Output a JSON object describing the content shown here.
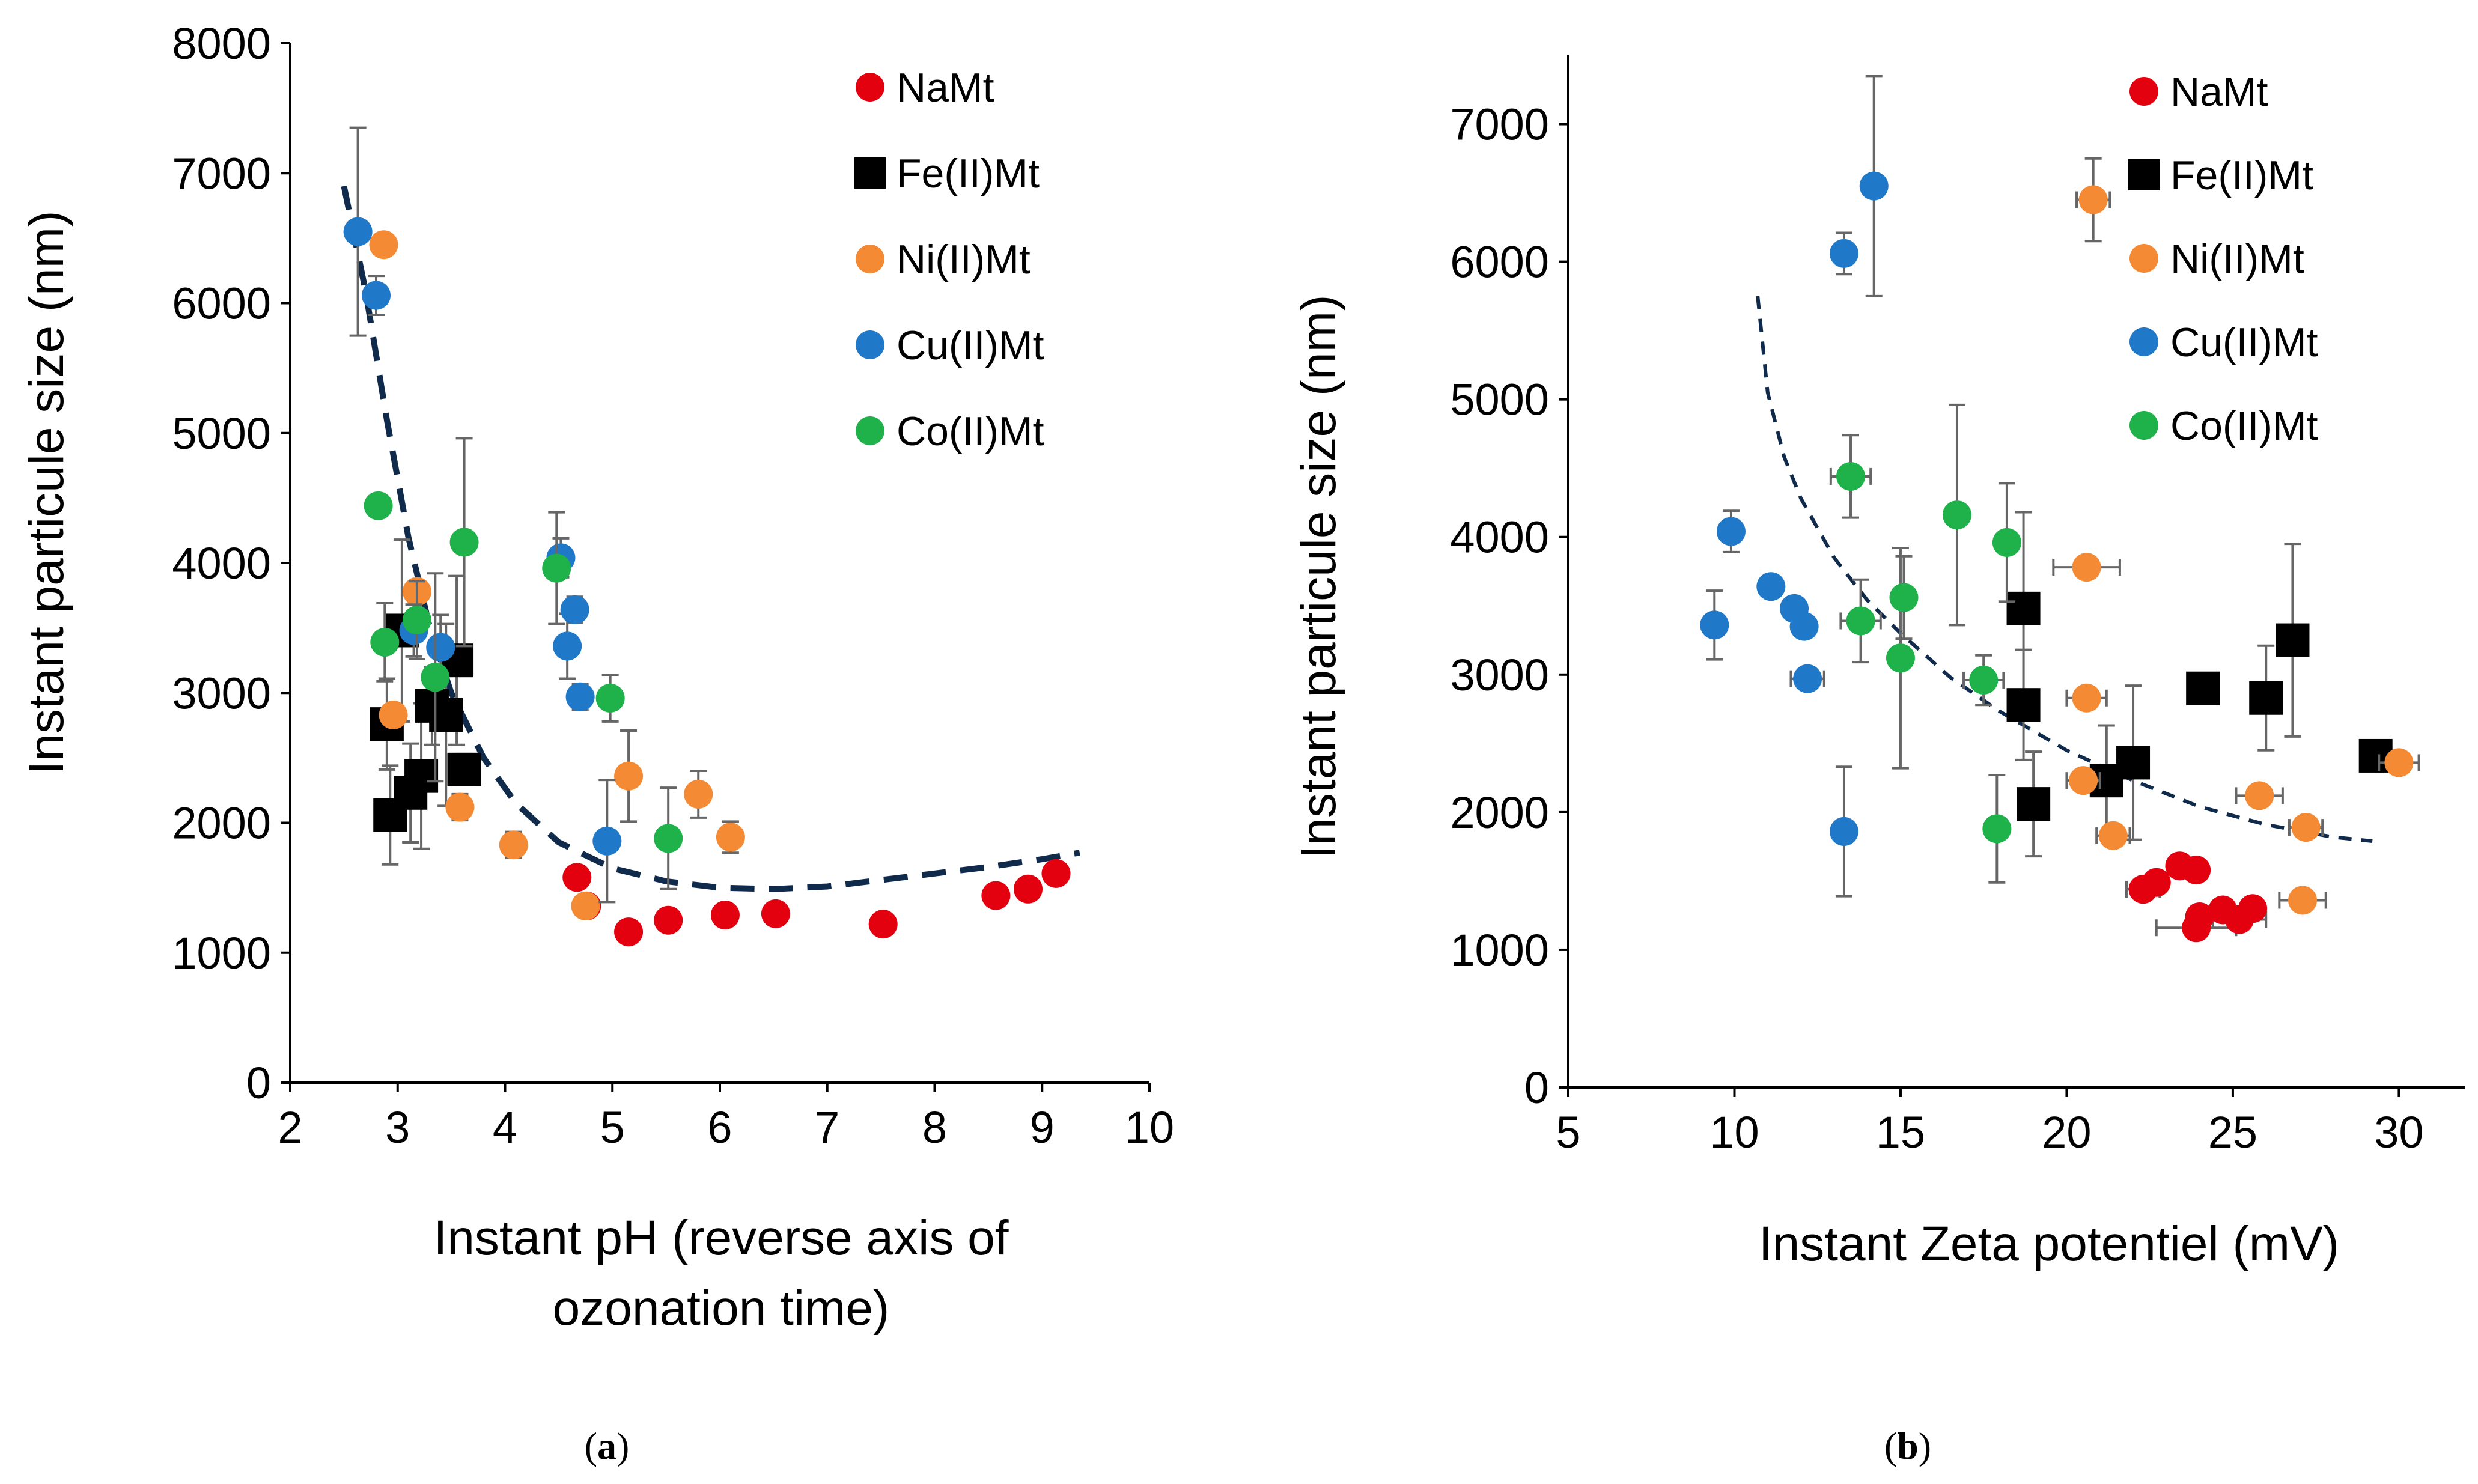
{
  "figure": {
    "colors": {
      "NaMt": "#e3000f",
      "Fe(II)Mt": "#000000",
      "Ni(II)Mt": "#f58a34",
      "Cu(II)Mt": "#1f78c8",
      "Co(II)Mt": "#1fb24a",
      "trend": "#0f2a4a",
      "error_bar": "#666666"
    }
  },
  "chart_data": [
    {
      "id": "a",
      "type": "scatter",
      "caption_letter": "a",
      "xlabel_line1": "Instant pH (reverse axis of",
      "xlabel_line2": "ozonation time)",
      "ylabel": "Instant particule size (nm)",
      "xlim": [
        2,
        10
      ],
      "ylim": [
        0,
        8000
      ],
      "xticks": [
        "2",
        "3",
        "4",
        "5",
        "6",
        "7",
        "8",
        "9",
        "10"
      ],
      "yticks": [
        "0",
        "1000",
        "2000",
        "3000",
        "4000",
        "5000",
        "6000",
        "7000",
        "8000"
      ],
      "legend": [
        "NaMt",
        "Fe(II)Mt",
        "Ni(II)Mt",
        "Cu(II)Mt",
        "Co(II)Mt"
      ],
      "legend_position": "top-right",
      "trendline": {
        "style": "dashed",
        "x": [
          2.5,
          2.7,
          2.9,
          3.1,
          3.3,
          3.5,
          3.8,
          4.1,
          4.5,
          5.0,
          5.5,
          6.0,
          6.5,
          7.0,
          7.5,
          8.0,
          8.5,
          9.0,
          9.35
        ],
        "y": [
          6900,
          6100,
          5100,
          4200,
          3500,
          3000,
          2500,
          2150,
          1850,
          1650,
          1550,
          1500,
          1490,
          1510,
          1560,
          1610,
          1660,
          1720,
          1770
        ]
      },
      "series": [
        {
          "name": "NaMt",
          "marker": "circle",
          "points": [
            {
              "x": 4.67,
              "y": 1580,
              "e": 40
            },
            {
              "x": 4.76,
              "y": 1360,
              "e": 0
            },
            {
              "x": 5.15,
              "y": 1160,
              "e": 40
            },
            {
              "x": 5.52,
              "y": 1250,
              "e": 40
            },
            {
              "x": 6.05,
              "y": 1290,
              "e": 40
            },
            {
              "x": 6.52,
              "y": 1300,
              "e": 40
            },
            {
              "x": 7.52,
              "y": 1220,
              "e": 80
            },
            {
              "x": 8.57,
              "y": 1440,
              "e": 40
            },
            {
              "x": 8.87,
              "y": 1490,
              "e": 80
            },
            {
              "x": 9.13,
              "y": 1610,
              "e": 40
            }
          ]
        },
        {
          "name": "Fe(II)Mt",
          "marker": "square",
          "points": [
            {
              "x": 2.9,
              "y": 2760,
              "e": 350
            },
            {
              "x": 2.93,
              "y": 2060,
              "e": 380
            },
            {
              "x": 3.04,
              "y": 3480,
              "e": 700
            },
            {
              "x": 3.12,
              "y": 2230,
              "e": 380
            },
            {
              "x": 3.22,
              "y": 2360,
              "e": 560
            },
            {
              "x": 3.32,
              "y": 2900,
              "e": 300
            },
            {
              "x": 3.45,
              "y": 2830,
              "e": 700
            },
            {
              "x": 3.55,
              "y": 3250,
              "e": 650
            },
            {
              "x": 3.62,
              "y": 2410,
              "e": 120
            }
          ]
        },
        {
          "name": "Ni(II)Mt",
          "marker": "circle",
          "points": [
            {
              "x": 2.87,
              "y": 6450,
              "e": 0
            },
            {
              "x": 2.96,
              "y": 2830,
              "e": 0
            },
            {
              "x": 3.18,
              "y": 3780,
              "e": 0
            },
            {
              "x": 3.58,
              "y": 2120,
              "e": 100
            },
            {
              "x": 4.08,
              "y": 1830,
              "e": 100
            },
            {
              "x": 4.75,
              "y": 1360,
              "e": 0
            },
            {
              "x": 5.15,
              "y": 2360,
              "e": 350
            },
            {
              "x": 5.8,
              "y": 2220,
              "e": 180
            },
            {
              "x": 6.1,
              "y": 1890,
              "e": 120
            }
          ]
        },
        {
          "name": "Cu(II)Mt",
          "marker": "circle",
          "points": [
            {
              "x": 2.63,
              "y": 6550,
              "e": 800
            },
            {
              "x": 2.8,
              "y": 6060,
              "e": 150
            },
            {
              "x": 3.15,
              "y": 3480,
              "e": 200
            },
            {
              "x": 3.4,
              "y": 3350,
              "e": 250
            },
            {
              "x": 4.52,
              "y": 4040,
              "e": 150
            },
            {
              "x": 4.58,
              "y": 3360,
              "e": 250
            },
            {
              "x": 4.65,
              "y": 3640,
              "e": 100
            },
            {
              "x": 4.7,
              "y": 2970,
              "e": 100
            },
            {
              "x": 4.95,
              "y": 1860,
              "e": 470
            }
          ]
        },
        {
          "name": "Co(II)Mt",
          "marker": "circle",
          "points": [
            {
              "x": 2.82,
              "y": 4440,
              "e": 0
            },
            {
              "x": 2.88,
              "y": 3390,
              "e": 300
            },
            {
              "x": 3.18,
              "y": 3560,
              "e": 300
            },
            {
              "x": 3.35,
              "y": 3120,
              "e": 800
            },
            {
              "x": 3.62,
              "y": 4160,
              "e": 800
            },
            {
              "x": 4.48,
              "y": 3960,
              "e": 430
            },
            {
              "x": 4.98,
              "y": 2960,
              "e": 180
            },
            {
              "x": 5.52,
              "y": 1880,
              "e": 390
            }
          ]
        }
      ]
    },
    {
      "id": "b",
      "type": "scatter",
      "caption_letter": "b",
      "xlabel_line1": "Instant Zeta potentiel (mV)",
      "xlabel_line2": "",
      "ylabel": "Instant particule size (nm)",
      "xlim": [
        5,
        32
      ],
      "ylim": [
        0,
        7500
      ],
      "xticks": [
        "5",
        "10",
        "15",
        "20",
        "25",
        "30"
      ],
      "xtick_values": [
        5,
        10,
        15,
        20,
        25,
        30
      ],
      "yticks": [
        "0",
        "1000",
        "2000",
        "3000",
        "4000",
        "5000",
        "6000",
        "7000"
      ],
      "legend": [
        "NaMt",
        "Fe(II)Mt",
        "Ni(II)Mt",
        "Cu(II)Mt",
        "Co(II)Mt"
      ],
      "legend_position": "top-right",
      "trendline": {
        "style": "dashed",
        "x": [
          10.7,
          11.0,
          11.5,
          12.0,
          13.0,
          14.0,
          15.0,
          16.5,
          18.0,
          20.0,
          22.0,
          24.0,
          26.0,
          28.0,
          29.2
        ],
        "y": [
          5750,
          5050,
          4580,
          4280,
          3850,
          3540,
          3300,
          2980,
          2730,
          2450,
          2230,
          2040,
          1910,
          1820,
          1790
        ]
      },
      "series": [
        {
          "name": "NaMt",
          "marker": "circle",
          "points": [
            {
              "x": 22.3,
              "y": 1440,
              "e": 0,
              "ex": 0.5
            },
            {
              "x": 22.7,
              "y": 1490,
              "e": 0,
              "ex": 0
            },
            {
              "x": 23.4,
              "y": 1610,
              "e": 0,
              "ex": 0
            },
            {
              "x": 23.9,
              "y": 1580,
              "e": 0,
              "ex": 0
            },
            {
              "x": 24.0,
              "y": 1240,
              "e": 0,
              "ex": 0
            },
            {
              "x": 23.9,
              "y": 1160,
              "e": 0,
              "ex": 1.2
            },
            {
              "x": 24.7,
              "y": 1290,
              "e": 0,
              "ex": 0
            },
            {
              "x": 25.2,
              "y": 1220,
              "e": 0,
              "ex": 0.8
            },
            {
              "x": 25.6,
              "y": 1300,
              "e": 0,
              "ex": 0
            }
          ]
        },
        {
          "name": "Fe(II)Mt",
          "marker": "square",
          "points": [
            {
              "x": 18.7,
              "y": 3480,
              "e": 700,
              "ex": 0
            },
            {
              "x": 18.7,
              "y": 2780,
              "e": 400,
              "ex": 0
            },
            {
              "x": 19.0,
              "y": 2060,
              "e": 380,
              "ex": 0
            },
            {
              "x": 21.2,
              "y": 2230,
              "e": 400,
              "ex": 0
            },
            {
              "x": 22.0,
              "y": 2360,
              "e": 560,
              "ex": 0
            },
            {
              "x": 24.1,
              "y": 2900,
              "e": 0,
              "ex": 0
            },
            {
              "x": 26.0,
              "y": 2830,
              "e": 380,
              "ex": 0
            },
            {
              "x": 26.8,
              "y": 3250,
              "e": 700,
              "ex": 0
            },
            {
              "x": 29.3,
              "y": 2410,
              "e": 0,
              "ex": 0
            }
          ]
        },
        {
          "name": "Ni(II)Mt",
          "marker": "circle",
          "points": [
            {
              "x": 20.8,
              "y": 6450,
              "e": 300,
              "ex": 0.5
            },
            {
              "x": 20.6,
              "y": 3780,
              "e": 0,
              "ex": 1.0
            },
            {
              "x": 20.6,
              "y": 2830,
              "e": 0,
              "ex": 0.6
            },
            {
              "x": 20.5,
              "y": 2230,
              "e": 0,
              "ex": 0.5
            },
            {
              "x": 21.4,
              "y": 1830,
              "e": 0,
              "ex": 0.5
            },
            {
              "x": 25.8,
              "y": 2120,
              "e": 0,
              "ex": 0.7
            },
            {
              "x": 27.2,
              "y": 1890,
              "e": 0,
              "ex": 0.5
            },
            {
              "x": 27.1,
              "y": 1360,
              "e": 0,
              "ex": 0.7
            },
            {
              "x": 30.0,
              "y": 2360,
              "e": 0,
              "ex": 0.6
            }
          ]
        },
        {
          "name": "Cu(II)Mt",
          "marker": "circle",
          "points": [
            {
              "x": 13.3,
              "y": 6060,
              "e": 150,
              "ex": 0
            },
            {
              "x": 14.2,
              "y": 6550,
              "e": 800,
              "ex": 0
            },
            {
              "x": 9.9,
              "y": 4040,
              "e": 150,
              "ex": 0
            },
            {
              "x": 11.1,
              "y": 3640,
              "e": 0,
              "ex": 0
            },
            {
              "x": 11.8,
              "y": 3480,
              "e": 0,
              "ex": 0
            },
            {
              "x": 9.4,
              "y": 3360,
              "e": 250,
              "ex": 0
            },
            {
              "x": 12.1,
              "y": 3350,
              "e": 0,
              "ex": 0
            },
            {
              "x": 12.2,
              "y": 2970,
              "e": 0,
              "ex": 0.5
            },
            {
              "x": 13.3,
              "y": 1860,
              "e": 470,
              "ex": 0
            }
          ]
        },
        {
          "name": "Co(II)Mt",
          "marker": "circle",
          "points": [
            {
              "x": 13.5,
              "y": 4440,
              "e": 300,
              "ex": 0.6
            },
            {
              "x": 16.7,
              "y": 4160,
              "e": 800,
              "ex": 0
            },
            {
              "x": 18.2,
              "y": 3960,
              "e": 430,
              "ex": 0
            },
            {
              "x": 15.1,
              "y": 3560,
              "e": 300,
              "ex": 0
            },
            {
              "x": 13.8,
              "y": 3390,
              "e": 300,
              "ex": 0.6
            },
            {
              "x": 15.0,
              "y": 3120,
              "e": 800,
              "ex": 0
            },
            {
              "x": 17.5,
              "y": 2960,
              "e": 180,
              "ex": 0.6
            },
            {
              "x": 17.9,
              "y": 1880,
              "e": 390,
              "ex": 0
            }
          ]
        }
      ]
    }
  ]
}
